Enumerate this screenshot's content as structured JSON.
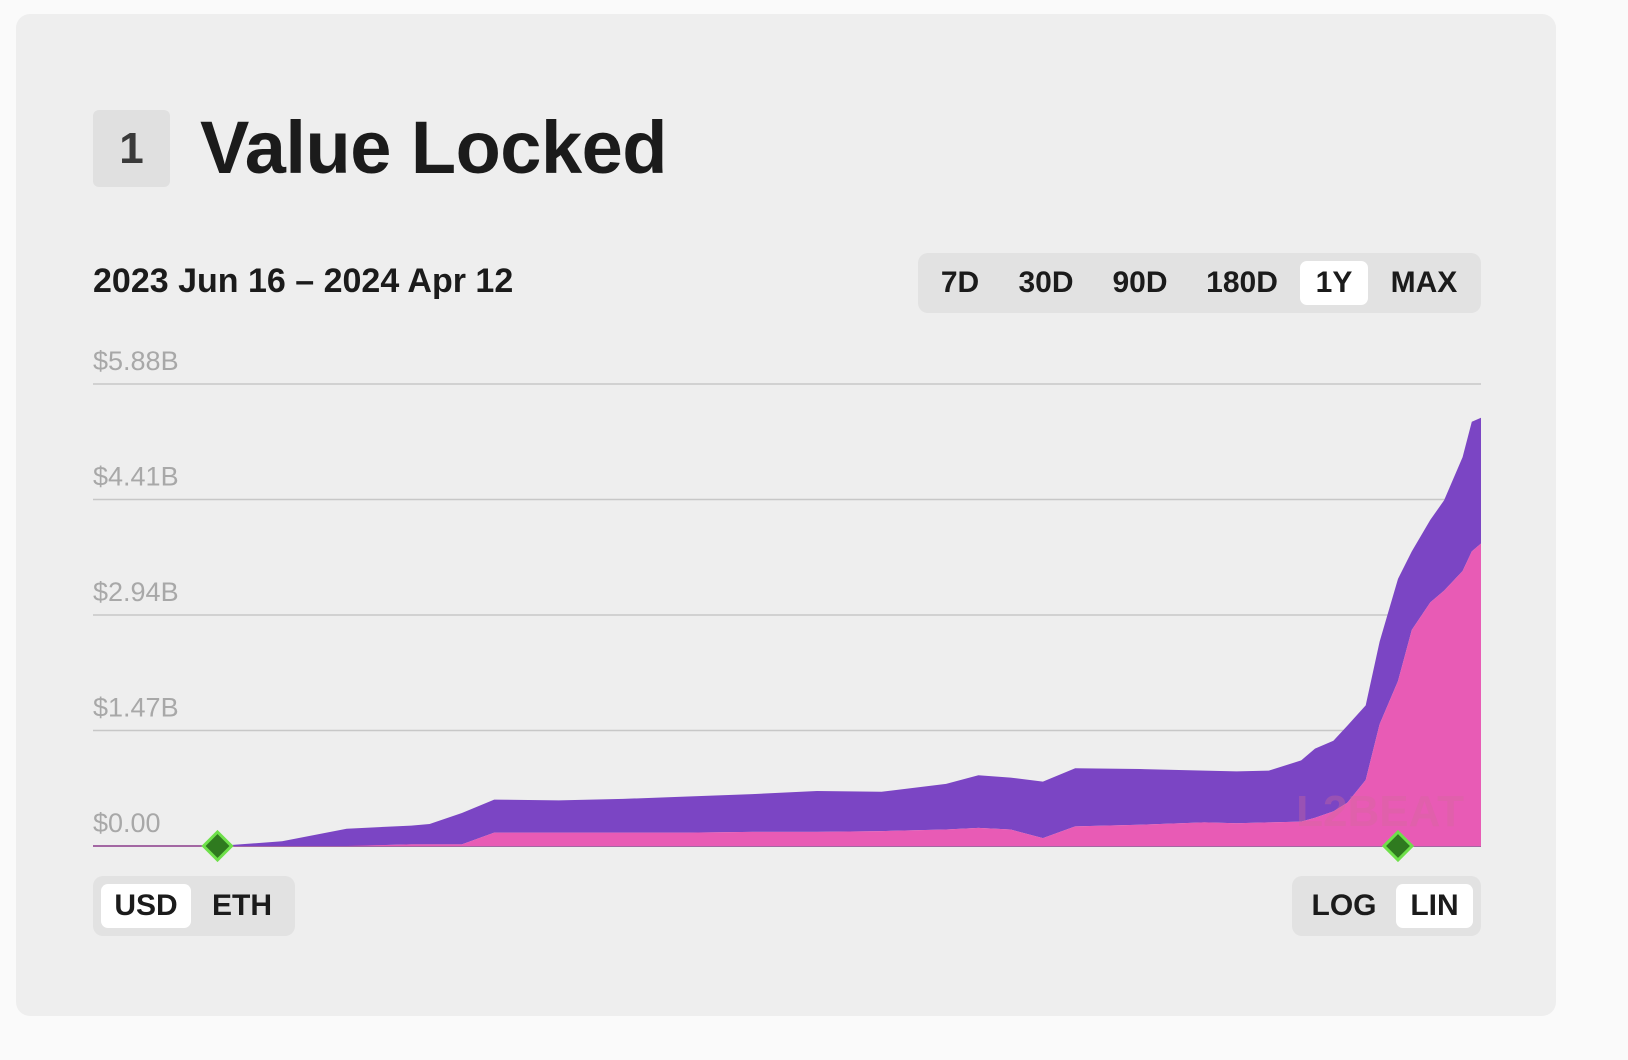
{
  "section": {
    "number": "1",
    "title": "Value Locked"
  },
  "date_range": "2023 Jun 16 – 2024 Apr 12",
  "range_buttons": [
    {
      "label": "7D",
      "active": false
    },
    {
      "label": "30D",
      "active": false
    },
    {
      "label": "90D",
      "active": false
    },
    {
      "label": "180D",
      "active": false
    },
    {
      "label": "1Y",
      "active": true
    },
    {
      "label": "MAX",
      "active": false
    }
  ],
  "unit_toggle": {
    "options": [
      "USD",
      "ETH"
    ],
    "selected": "USD"
  },
  "scale_toggle": {
    "options": [
      "LOG",
      "LIN"
    ],
    "selected": "LIN"
  },
  "watermark": "L2BEAT",
  "colors": {
    "series_bottom": "#e85bb5",
    "series_top": "#7b45c4",
    "milestone": "#2f7a1f",
    "milestone_outline": "#6ee04a",
    "gridline": "#c7c7c7",
    "tick_label": "#a8a8a8"
  },
  "chart_data": {
    "type": "area",
    "stacked": true,
    "x_range": [
      "2023-06-16",
      "2024-04-12"
    ],
    "y_ticks": [
      "$0.00",
      "$1.47B",
      "$2.94B",
      "$4.41B",
      "$5.88B"
    ],
    "y_tick_values": [
      0,
      1.47,
      2.94,
      4.41,
      5.88
    ],
    "ylim": [
      0,
      5.88
    ],
    "y_unit": "B USD",
    "scale": "linear",
    "grid": true,
    "x": [
      "2023-06-16",
      "2023-07-13",
      "2023-07-27",
      "2023-08-10",
      "2023-08-24",
      "2023-08-28",
      "2023-09-04",
      "2023-09-11",
      "2023-09-25",
      "2023-10-09",
      "2023-10-23",
      "2023-11-06",
      "2023-11-20",
      "2023-12-04",
      "2023-12-18",
      "2023-12-25",
      "2024-01-01",
      "2024-01-08",
      "2024-01-15",
      "2024-01-29",
      "2024-02-12",
      "2024-02-19",
      "2024-02-26",
      "2024-03-04",
      "2024-03-07",
      "2024-03-11",
      "2024-03-14",
      "2024-03-18",
      "2024-03-21",
      "2024-03-25",
      "2024-03-28",
      "2024-04-01",
      "2024-04-04",
      "2024-04-08",
      "2024-04-10",
      "2024-04-12"
    ],
    "series": [
      {
        "values": [
          0,
          0,
          0,
          0,
          0.02,
          0.02,
          0.02,
          0.17,
          0.17,
          0.17,
          0.17,
          0.18,
          0.18,
          0.19,
          0.21,
          0.23,
          0.21,
          0.1,
          0.25,
          0.27,
          0.3,
          0.29,
          0.3,
          0.31,
          0.36,
          0.44,
          0.55,
          0.84,
          1.55,
          2.1,
          2.75,
          3.1,
          3.25,
          3.5,
          3.75,
          3.85
        ]
      },
      {
        "values": [
          0,
          0,
          0.06,
          0.22,
          0.24,
          0.26,
          0.4,
          0.42,
          0.41,
          0.43,
          0.46,
          0.48,
          0.52,
          0.5,
          0.58,
          0.67,
          0.66,
          0.72,
          0.74,
          0.71,
          0.66,
          0.66,
          0.66,
          0.78,
          0.88,
          0.9,
          0.98,
          0.95,
          1.05,
          1.3,
          1.0,
          1.05,
          1.15,
          1.45,
          1.65,
          1.6
        ]
      }
    ],
    "milestones": [
      "2023-07-13",
      "2024-03-25"
    ]
  }
}
